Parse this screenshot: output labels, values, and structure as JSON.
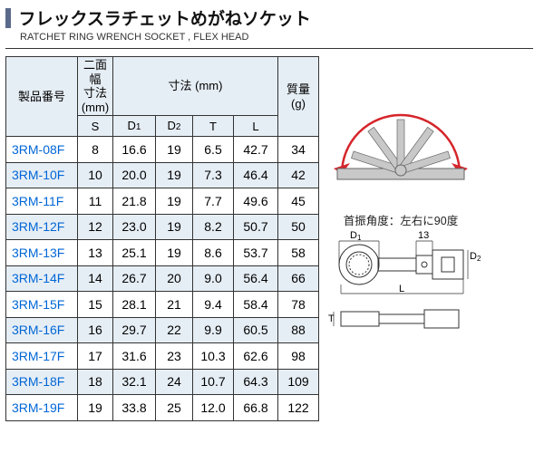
{
  "header": {
    "title_ja": "フレックスラチェットめがねソケット",
    "title_en": "RATCHET RING WRENCH SOCKET , FLEX HEAD",
    "side_bar_color": "#5a6a8a"
  },
  "table": {
    "header": {
      "product_no": "製品番号",
      "two_face_width": "二面幅",
      "two_face_sub": "寸法",
      "two_face_unit": "(mm)",
      "dimensions": "寸法 (mm)",
      "mass": "質量",
      "mass_unit": "(g)",
      "sub": {
        "s": "S",
        "d1": "D",
        "d1_sub": "1",
        "d2": "D",
        "d2_sub": "2",
        "t": "T",
        "l": "L"
      }
    },
    "rows": [
      {
        "pn": "3RM-08F",
        "s": "8",
        "d1": "16.6",
        "d2": "19",
        "t": "6.5",
        "l": "42.7",
        "w": "34"
      },
      {
        "pn": "3RM-10F",
        "s": "10",
        "d1": "20.0",
        "d2": "19",
        "t": "7.3",
        "l": "46.4",
        "w": "42"
      },
      {
        "pn": "3RM-11F",
        "s": "11",
        "d1": "21.8",
        "d2": "19",
        "t": "7.7",
        "l": "49.6",
        "w": "45"
      },
      {
        "pn": "3RM-12F",
        "s": "12",
        "d1": "23.0",
        "d2": "19",
        "t": "8.2",
        "l": "50.7",
        "w": "50"
      },
      {
        "pn": "3RM-13F",
        "s": "13",
        "d1": "25.1",
        "d2": "19",
        "t": "8.6",
        "l": "53.7",
        "w": "58"
      },
      {
        "pn": "3RM-14F",
        "s": "14",
        "d1": "26.7",
        "d2": "20",
        "t": "9.0",
        "l": "56.4",
        "w": "66"
      },
      {
        "pn": "3RM-15F",
        "s": "15",
        "d1": "28.1",
        "d2": "21",
        "t": "9.4",
        "l": "58.4",
        "w": "78"
      },
      {
        "pn": "3RM-16F",
        "s": "16",
        "d1": "29.7",
        "d2": "22",
        "t": "9.9",
        "l": "60.5",
        "w": "88"
      },
      {
        "pn": "3RM-17F",
        "s": "17",
        "d1": "31.6",
        "d2": "23",
        "t": "10.3",
        "l": "62.6",
        "w": "98"
      },
      {
        "pn": "3RM-18F",
        "s": "18",
        "d1": "32.1",
        "d2": "24",
        "t": "10.7",
        "l": "64.3",
        "w": "109"
      },
      {
        "pn": "3RM-19F",
        "s": "19",
        "d1": "33.8",
        "d2": "25",
        "t": "12.0",
        "l": "66.8",
        "w": "122"
      }
    ],
    "stripe_color": "#e6eef5",
    "border_color": "#333333",
    "link_color": "#0066d6"
  },
  "diagram": {
    "angle_label": "首振角度：左右に90度",
    "arc_color": "#d5252b",
    "arrow_color": "#d5252b",
    "body_fill": "#bfbfbf",
    "body_stroke": "#555555",
    "d1_label": "D",
    "d1_sub": "1",
    "d2_label": "D",
    "d2_sub": "2",
    "l_label": "L",
    "t_label": "T",
    "thirteen_label": "13"
  }
}
